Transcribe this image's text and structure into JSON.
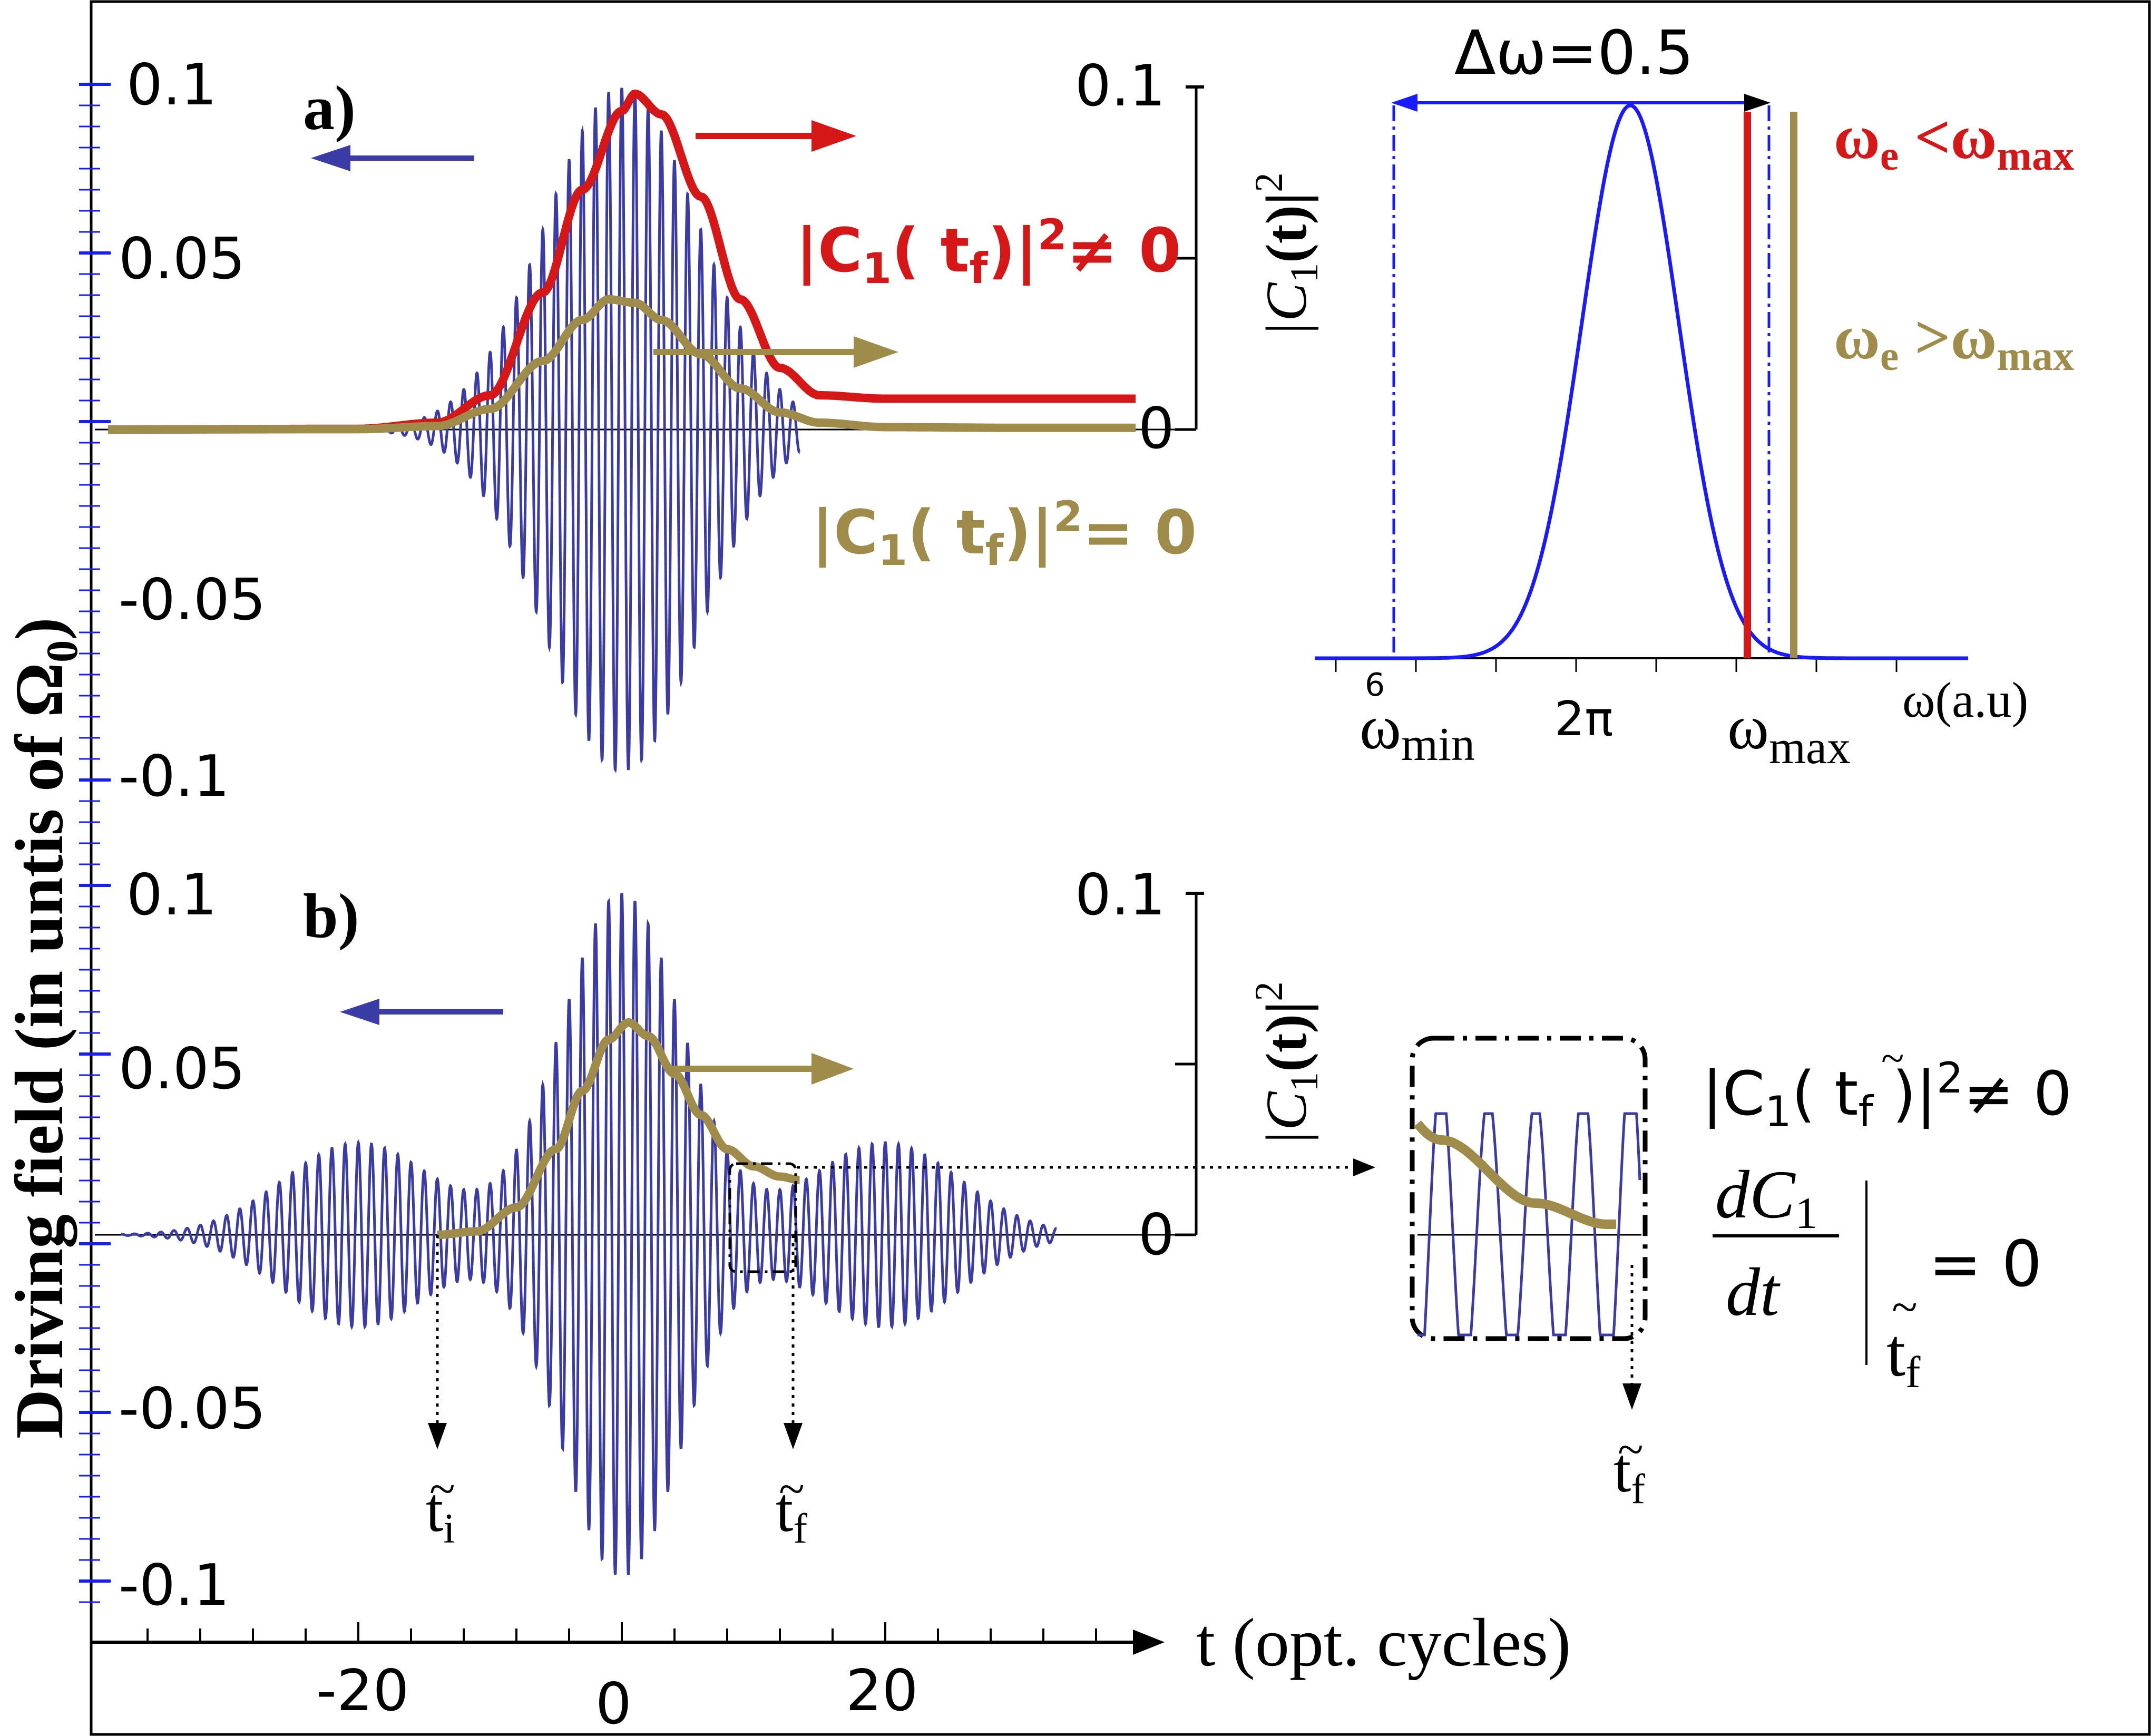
{
  "colors": {
    "field": "#3b3ba6",
    "red": "#d61717",
    "olive": "#a08c4a",
    "axis": "#000000",
    "spectrum": "#1a1aff"
  },
  "ylabel": "Driving field (in untis of Ω",
  "ylabel_sub": "0",
  "ylabel_close": ")",
  "xlabel": "t (opt. cycles)",
  "xticks": [
    "-20",
    "0",
    "20"
  ],
  "left_yticks": [
    "0.1",
    "0.05",
    "-0.05",
    "-0.1"
  ],
  "right_yticks": [
    "0.1",
    "0"
  ],
  "right_ylabel": "|C",
  "right_ylabel_sub": "1",
  "right_ylabel_mid": "(t)|",
  "right_ylabel_sup": "2",
  "panel_a": {
    "label": "a)",
    "red_annot": "|C",
    "red_annot_sub": "1",
    "red_annot_mid": "( t",
    "red_annot_sub2": "f",
    "red_annot_end": ")|",
    "red_annot_sup": "2",
    "red_annot_rel": "≠ 0",
    "olive_annot": "|C",
    "olive_annot_sub": "1",
    "olive_annot_mid": "( t",
    "olive_annot_sub2": "f",
    "olive_annot_end": ")|",
    "olive_annot_sup": "2",
    "olive_annot_rel": "= 0"
  },
  "panel_b": {
    "label": "b)",
    "ti_label": "t",
    "ti_sub": "i",
    "tf_label": "t",
    "tf_sub": "f",
    "tilde": "~",
    "inset_annot": "|C",
    "inset_annot_sub": "1",
    "inset_annot_mid": "( t",
    "inset_annot_sub2": "f",
    "inset_annot_end": " )|",
    "inset_annot_sup": "2",
    "inset_annot_rel": "≠ 0",
    "deriv_num": "dC",
    "deriv_num_sub": "1",
    "deriv_den": "dt",
    "deriv_eq": "=  0",
    "deriv_at": "t",
    "deriv_at_sub": "f"
  },
  "spectrum": {
    "delta_label": "Δω=0.5",
    "xlabel": "ω(a.u)",
    "tick_6": "6",
    "tick_2pi": "2π",
    "wmin": "ω",
    "wmin_sub": "min",
    "wmax": "ω",
    "wmax_sub": "max",
    "legend_red": "ω",
    "legend_red_sub": "e",
    "legend_red_rel": " <ω",
    "legend_red_sub2": "max",
    "legend_olive": "ω",
    "legend_olive_sub": "e",
    "legend_olive_rel": " >ω",
    "legend_olive_sub2": "max"
  },
  "chart_data": [
    {
      "panel": "a",
      "type": "line",
      "xlabel": "t (opt. cycles)",
      "ylabel": "Driving field (in untis of Ω0)",
      "y2label": "|C1(t)|^2",
      "xlim": [
        -39,
        39
      ],
      "ylim": [
        -0.1,
        0.1
      ],
      "y2lim": [
        0,
        0.1
      ],
      "series": [
        {
          "name": "driving field",
          "type": "oscillation",
          "carrier_cycles_per_unit": 1.0,
          "envelope": {
            "center": 0,
            "amplitude": 0.1,
            "width": 8.2
          }
        },
        {
          "name": "|C1(tf)|^2 ≠ 0",
          "x": [
            -39,
            -20,
            -14,
            -10,
            -6,
            -3,
            0,
            1,
            3,
            6,
            9,
            12,
            15,
            20,
            30,
            39
          ],
          "y": [
            0,
            0.0002,
            0.002,
            0.01,
            0.04,
            0.07,
            0.093,
            0.098,
            0.092,
            0.068,
            0.038,
            0.018,
            0.01,
            0.009,
            0.009,
            0.009
          ]
        },
        {
          "name": "|C1(tf)|^2 = 0",
          "x": [
            -39,
            -20,
            -14,
            -10,
            -6,
            -3,
            -1,
            1,
            3,
            6,
            9,
            12,
            15,
            20,
            30,
            39
          ],
          "y": [
            0,
            0.0001,
            0.001,
            0.006,
            0.02,
            0.032,
            0.038,
            0.037,
            0.032,
            0.022,
            0.012,
            0.005,
            0.002,
            0.0007,
            0.0005,
            0.0005
          ]
        }
      ]
    },
    {
      "panel": "b",
      "type": "line",
      "xlabel": "t (opt. cycles)",
      "ylabel": "Driving field (in untis of Ω0)",
      "y2label": "|C1(t)|^2",
      "xlim": [
        -39,
        39
      ],
      "ylim": [
        -0.1,
        0.1
      ],
      "y2lim": [
        0,
        0.1
      ],
      "series": [
        {
          "name": "driving field",
          "type": "oscillation",
          "carrier_cycles_per_unit": 1.0,
          "envelopes": [
            {
              "center": -20,
              "amplitude": 0.027,
              "width": 8
            },
            {
              "center": 0,
              "amplitude": 0.1,
              "width": 6.5
            },
            {
              "center": 20,
              "amplitude": 0.027,
              "width": 8
            }
          ]
        },
        {
          "name": "|C1(t)|^2 b",
          "x": [
            -14,
            -11,
            -8,
            -5,
            -3,
            -1,
            0.5,
            2,
            4,
            6,
            8,
            10,
            12,
            13.5
          ],
          "y": [
            0,
            0.001,
            0.008,
            0.025,
            0.042,
            0.057,
            0.062,
            0.058,
            0.047,
            0.035,
            0.025,
            0.02,
            0.017,
            0.016
          ]
        }
      ]
    },
    {
      "panel": "spectrum",
      "type": "line",
      "xlabel": "ω(a.u)",
      "series": [
        {
          "name": "spectrum",
          "x": [
            5.8,
            6.0,
            6.1,
            6.2,
            6.283,
            6.37,
            6.45,
            6.55,
            6.6,
            6.8
          ],
          "y": [
            0,
            0.01,
            0.2,
            0.7,
            1.0,
            0.7,
            0.2,
            0.01,
            0,
            0
          ]
        }
      ],
      "markers": {
        "omega_min": 6.0,
        "omega_max": 6.5,
        "omega_e_red": 6.47,
        "omega_e_olive": 6.53
      }
    }
  ]
}
